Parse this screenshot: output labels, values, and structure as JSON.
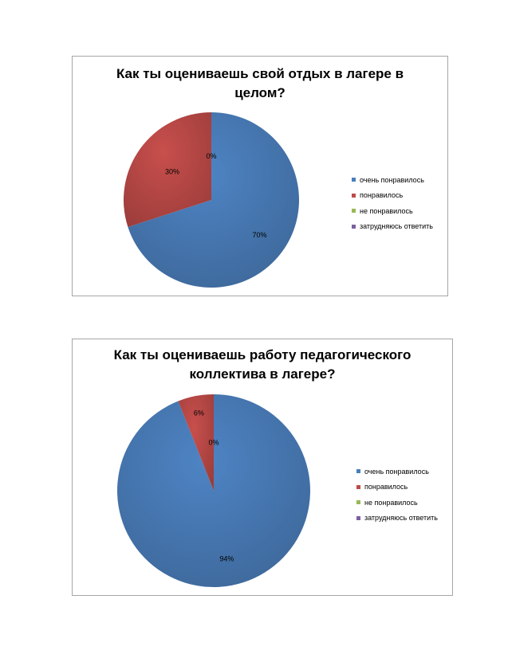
{
  "colors": {
    "очень понравилось": "#4a7ebb",
    "понравилось": "#be4b48",
    "не понравилось": "#98b954",
    "затрудняюсь ответить": "#7d60a0"
  },
  "chart_data": [
    {
      "type": "pie",
      "title": "Как ты оцениваешь свой отдых в лагере в\nцелом?",
      "categories": [
        "очень понравилось",
        "понравилось",
        "не понравилось",
        "затрудняюсь ответить"
      ],
      "values": [
        70,
        30,
        0,
        0
      ],
      "data_labels": [
        "70%",
        "30%",
        "0%",
        ""
      ],
      "legend_position": "right"
    },
    {
      "type": "pie",
      "title": "Как ты оцениваешь работу педагогического\nколлектива в лагере?",
      "categories": [
        "очень понравилось",
        "понравилось",
        "не понравилось",
        "затрудняюсь ответить"
      ],
      "values": [
        94,
        6,
        0,
        0
      ],
      "data_labels": [
        "94%",
        "6%",
        "0%",
        ""
      ],
      "legend_position": "right"
    }
  ]
}
